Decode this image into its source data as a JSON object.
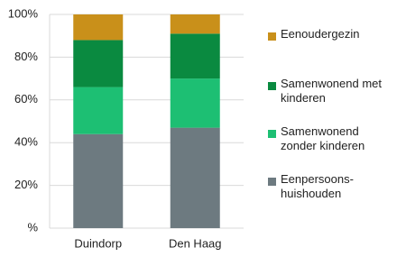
{
  "chart_data": {
    "type": "stacked-bar",
    "categories": [
      "Duindorp",
      "Den Haag"
    ],
    "series": [
      {
        "name": "Eenpersoons-huishouden",
        "color": "#6d7a80",
        "values": [
          44,
          47
        ]
      },
      {
        "name": "Samenwonend zonder kinderen",
        "color": "#1dbf73",
        "values": [
          22,
          23
        ]
      },
      {
        "name": "Samenwonend met kinderen",
        "color": "#0a8a40",
        "values": [
          22,
          21
        ]
      },
      {
        "name": "Eenoudergezin",
        "color": "#c9901a",
        "values": [
          12,
          9
        ]
      }
    ],
    "ylim": [
      0,
      100
    ],
    "yticks": [
      {
        "value": 0,
        "label": "%"
      },
      {
        "value": 20,
        "label": "20%"
      },
      {
        "value": 40,
        "label": "40%"
      },
      {
        "value": 60,
        "label": "60%"
      },
      {
        "value": 80,
        "label": "80%"
      },
      {
        "value": 100,
        "label": "100%"
      }
    ],
    "grid": true
  }
}
